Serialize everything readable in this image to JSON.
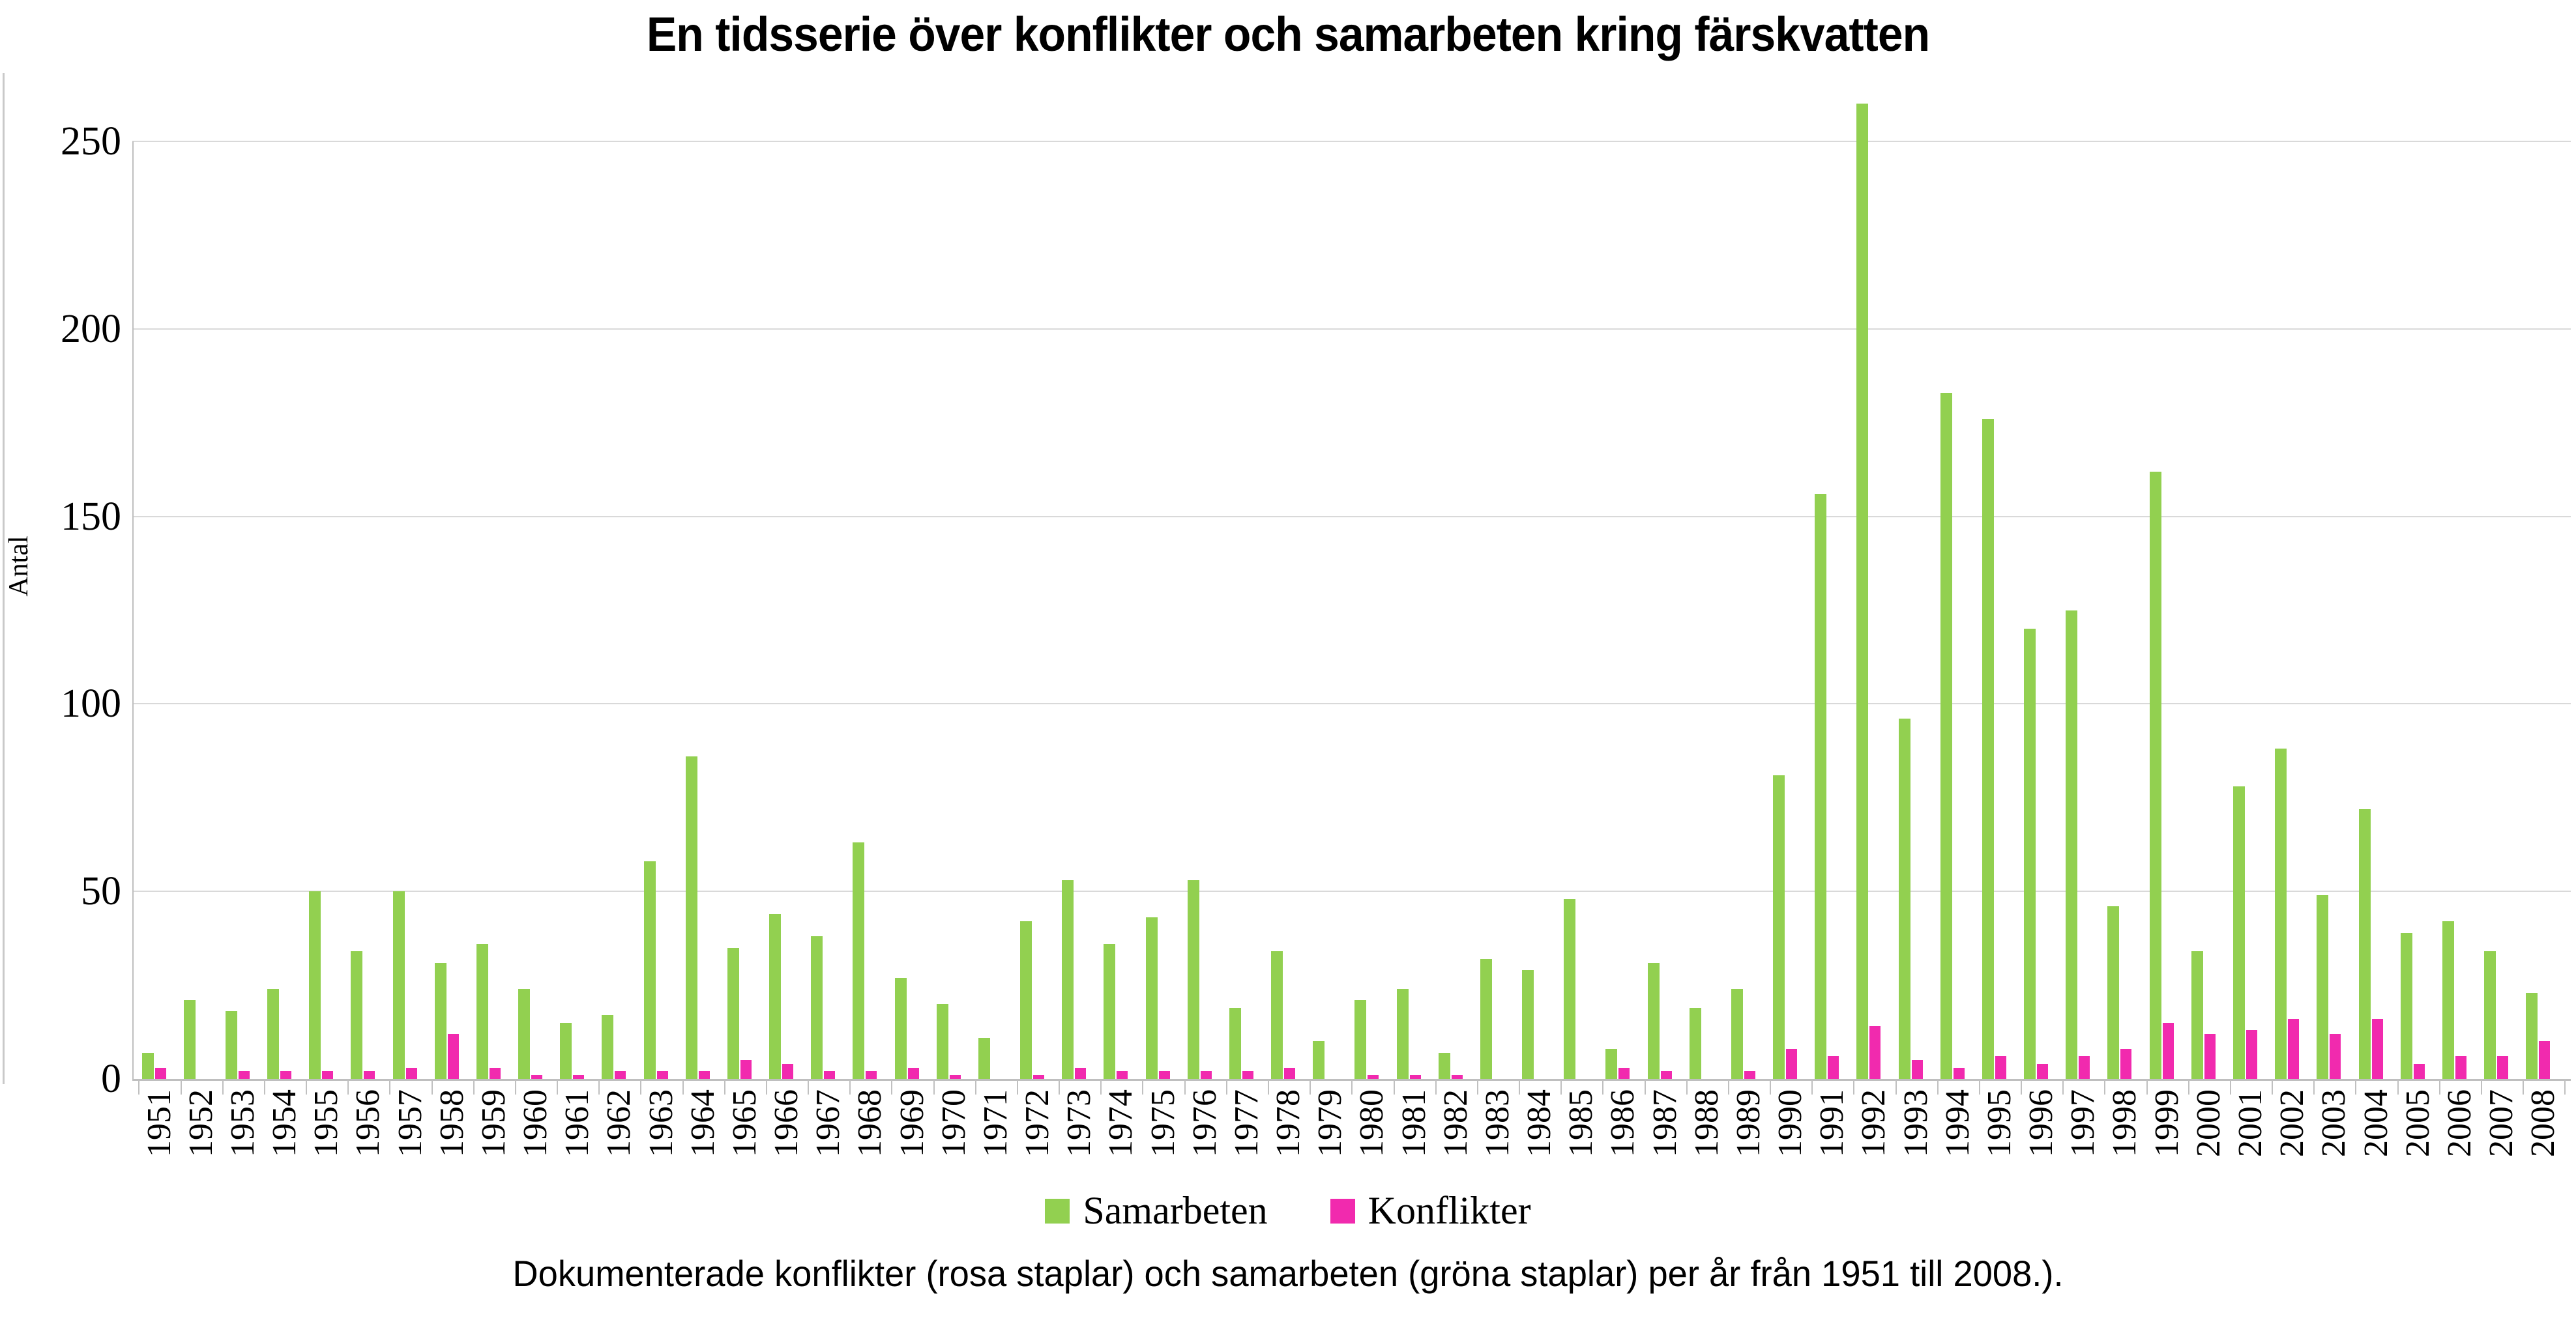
{
  "title": "En tidsserie över konflikter och samarbeten kring färskvatten",
  "caption": "Dokumenterade konflikter (rosa staplar) och samarbeten (gröna staplar) per år från 1951 till 2008.).",
  "chart_data": {
    "type": "bar",
    "title": "En tidsserie över konflikter och samarbeten kring färskvatten",
    "ylabel": "Antal",
    "xlabel": "",
    "ylim": [
      0,
      250
    ],
    "ytick_step": 50,
    "grid": true,
    "legend_position": "bottom",
    "axis_color": "#bfbfbf",
    "grid_color": "#d9d9d9",
    "categories": [
      1951,
      1952,
      1953,
      1954,
      1955,
      1956,
      1957,
      1958,
      1959,
      1960,
      1961,
      1962,
      1963,
      1964,
      1965,
      1966,
      1967,
      1968,
      1969,
      1970,
      1971,
      1972,
      1973,
      1974,
      1975,
      1976,
      1977,
      1978,
      1979,
      1980,
      1981,
      1982,
      1983,
      1984,
      1985,
      1986,
      1987,
      1988,
      1989,
      1990,
      1991,
      1992,
      1993,
      1994,
      1995,
      1996,
      1997,
      1998,
      1999,
      2000,
      2001,
      2002,
      2003,
      2004,
      2005,
      2006,
      2007,
      2008
    ],
    "series": [
      {
        "name": "Samarbeten",
        "color": "#92d050",
        "values": [
          7,
          21,
          18,
          24,
          50,
          34,
          50,
          31,
          36,
          24,
          15,
          17,
          58,
          86,
          35,
          44,
          38,
          63,
          27,
          20,
          11,
          42,
          53,
          36,
          43,
          53,
          19,
          34,
          10,
          21,
          24,
          7,
          32,
          29,
          48,
          8,
          31,
          19,
          24,
          81,
          156,
          260,
          96,
          183,
          176,
          120,
          125,
          46,
          162,
          34,
          78,
          88,
          49,
          72,
          39,
          42,
          34,
          23
        ]
      },
      {
        "name": "Konflikter",
        "color": "#f12aae",
        "values": [
          3,
          0,
          2,
          2,
          2,
          2,
          3,
          12,
          3,
          1,
          1,
          2,
          2,
          2,
          5,
          4,
          2,
          2,
          3,
          1,
          0,
          1,
          3,
          2,
          2,
          2,
          2,
          3,
          0,
          1,
          1,
          1,
          0,
          0,
          0,
          3,
          2,
          0,
          2,
          8,
          6,
          14,
          5,
          3,
          6,
          4,
          6,
          8,
          15,
          12,
          13,
          16,
          12,
          16,
          4,
          6,
          6,
          10
        ]
      }
    ]
  }
}
